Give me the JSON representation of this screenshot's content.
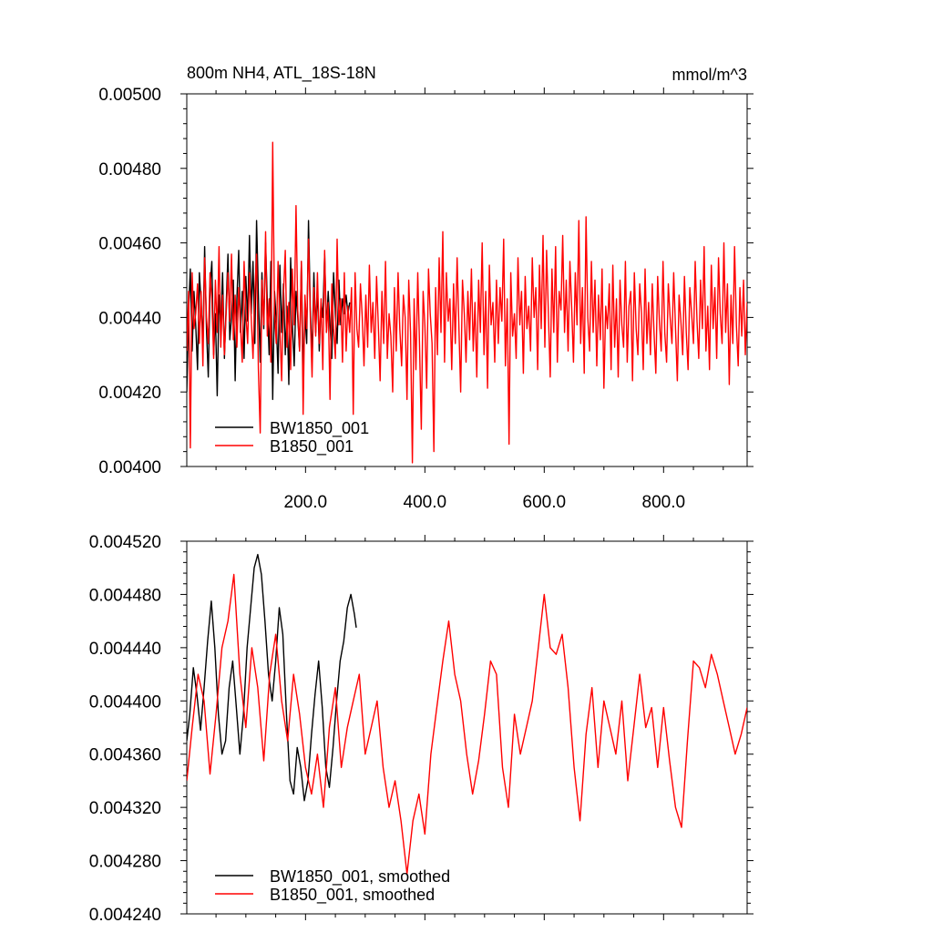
{
  "chart_data": [
    {
      "type": "line",
      "title": "800m NH4, ATL_18S-18N",
      "units": "mmol/m^3",
      "xlabel": "",
      "ylabel": "",
      "xlim": [
        1,
        940
      ],
      "ylim": [
        0.004,
        0.005
      ],
      "x_ticks": [
        200,
        400,
        600,
        800
      ],
      "x_tick_labels": [
        "200.0",
        "400.0",
        "600.0",
        "800.0"
      ],
      "y_ticks": [
        0.004,
        0.0042,
        0.0044,
        0.0046,
        0.0048,
        0.005
      ],
      "y_tick_labels": [
        "0.00400",
        "0.00420",
        "0.00440",
        "0.00460",
        "0.00480",
        "0.00500"
      ],
      "grid": false,
      "legend_position": "bottom-left",
      "series": [
        {
          "name": "BW1850_001",
          "color": "#000000",
          "x_start": 1,
          "x_step": 3,
          "values": [
            0.0042,
            0.00442,
            0.00453,
            0.00431,
            0.00447,
            0.00438,
            0.00426,
            0.00452,
            0.00444,
            0.00433,
            0.00459,
            0.00437,
            0.00424,
            0.00448,
            0.00455,
            0.0043,
            0.00441,
            0.00419,
            0.00446,
            0.00438,
            0.00452,
            0.00429,
            0.00443,
            0.00457,
            0.00434,
            0.0044,
            0.0045,
            0.00423,
            0.00445,
            0.00458,
            0.00436,
            0.00447,
            0.00429,
            0.00451,
            0.00439,
            0.00462,
            0.00441,
            0.00455,
            0.00433,
            0.00466,
            0.00446,
            0.00428,
            0.00452,
            0.00437,
            0.0046,
            0.00444,
            0.0043,
            0.00455,
            0.00418,
            0.00447,
            0.00439,
            0.00425,
            0.00454,
            0.00436,
            0.00449,
            0.0043,
            0.00443,
            0.00422,
            0.00456,
            0.00438,
            0.00427,
            0.00447,
            0.0044,
            0.00431,
            0.00455,
            0.00425,
            0.00441,
            0.00433,
            0.00466,
            0.00442,
            0.00429,
            0.00452,
            0.00436,
            0.00448,
            0.00431,
            0.00444,
            0.0044,
            0.00457,
            0.00436,
            0.00447,
            0.00438,
            0.00429,
            0.00452,
            0.00441,
            0.00433,
            0.0045,
            0.00438,
            0.00445,
            0.00441,
            0.00446,
            0.00441,
            0.00444
          ]
        },
        {
          "name": "B1850_001",
          "color": "#ff0000",
          "x_start": 1,
          "x_step": 3,
          "values": [
            0.00431,
            0.00447,
            0.00405,
            0.00452,
            0.00437,
            0.00441,
            0.00449,
            0.00433,
            0.00447,
            0.00427,
            0.00456,
            0.0044,
            0.00433,
            0.00452,
            0.00445,
            0.00429,
            0.0045,
            0.00436,
            0.00459,
            0.00432,
            0.00446,
            0.0043,
            0.00441,
            0.00452,
            0.00439,
            0.00457,
            0.00434,
            0.00446,
            0.00432,
            0.00448,
            0.00438,
            0.00428,
            0.00455,
            0.00441,
            0.00433,
            0.00452,
            0.0044,
            0.00429,
            0.00447,
            0.00457,
            0.00426,
            0.00409,
            0.0045,
            0.00438,
            0.00463,
            0.00435,
            0.00445,
            0.00428,
            0.00487,
            0.00441,
            0.00433,
            0.00455,
            0.00437,
            0.00423,
            0.00446,
            0.00458,
            0.00432,
            0.00444,
            0.00426,
            0.00453,
            0.00438,
            0.0047,
            0.00442,
            0.00431,
            0.00455,
            0.00414,
            0.00446,
            0.00437,
            0.00461,
            0.0044,
            0.00424,
            0.00448,
            0.00435,
            0.00452,
            0.00433,
            0.00445,
            0.00426,
            0.00458,
            0.00436,
            0.00444,
            0.00418,
            0.00449,
            0.00437,
            0.00429,
            0.00461,
            0.00438,
            0.00445,
            0.00428,
            0.00452,
            0.00431,
            0.00443,
            0.00436,
            0.00448,
            0.00414,
            0.00452,
            0.00437,
            0.00432,
            0.00449,
            0.0044,
            0.00427,
            0.00446,
            0.00432,
            0.00454,
            0.00436,
            0.00444,
            0.00429,
            0.00451,
            0.00438,
            0.00423,
            0.00447,
            0.00433,
            0.00455,
            0.00429,
            0.00441,
            0.00435,
            0.0042,
            0.00448,
            0.00431,
            0.00452,
            0.00437,
            0.00427,
            0.00446,
            0.0044,
            0.00418,
            0.0045,
            0.00436,
            0.00401,
            0.00445,
            0.00426,
            0.00452,
            0.00433,
            0.0041,
            0.00447,
            0.00438,
            0.00421,
            0.00453,
            0.00441,
            0.00433,
            0.00404,
            0.00448,
            0.0043,
            0.00456,
            0.00436,
            0.00463,
            0.00428,
            0.00452,
            0.00439,
            0.00445,
            0.00426,
            0.00449,
            0.00433,
            0.00456,
            0.00437,
            0.0042,
            0.0045,
            0.00441,
            0.00428,
            0.00447,
            0.00434,
            0.00453,
            0.00431,
            0.00444,
            0.00424,
            0.0045,
            0.00436,
            0.0046,
            0.0043,
            0.00447,
            0.00421,
            0.00454,
            0.00438,
            0.00444,
            0.00428,
            0.0045,
            0.00433,
            0.00448,
            0.00439,
            0.00461,
            0.00427,
            0.00445,
            0.00406,
            0.00452,
            0.00435,
            0.00441,
            0.00429,
            0.00456,
            0.00438,
            0.00447,
            0.00425,
            0.00451,
            0.00437,
            0.00443,
            0.00431,
            0.00456,
            0.0044,
            0.00448,
            0.00426,
            0.00454,
            0.00437,
            0.00462,
            0.00432,
            0.00458,
            0.00441,
            0.00424,
            0.00453,
            0.00436,
            0.00459,
            0.00428,
            0.00447,
            0.00442,
            0.00462,
            0.00436,
            0.0045,
            0.00431,
            0.00455,
            0.00443,
            0.00428,
            0.00452,
            0.00438,
            0.00466,
            0.00433,
            0.00448,
            0.00425,
            0.00467,
            0.0044,
            0.00431,
            0.00455,
            0.00436,
            0.0045,
            0.00427,
            0.00446,
            0.00434,
            0.00453,
            0.00421,
            0.00443,
            0.00437,
            0.00449,
            0.00426,
            0.00454,
            0.00432,
            0.00445,
            0.00424,
            0.0045,
            0.00438,
            0.00432,
            0.00455,
            0.00428,
            0.00443,
            0.00447,
            0.00423,
            0.00452,
            0.00437,
            0.0043,
            0.00449,
            0.00441,
            0.00426,
            0.00453,
            0.00433,
            0.00444,
            0.0043,
            0.00449,
            0.00436,
            0.00425,
            0.00451,
            0.00439,
            0.00431,
            0.00455,
            0.00436,
            0.00428,
            0.00449,
            0.0044,
            0.00433,
            0.00452,
            0.00437,
            0.00423,
            0.00446,
            0.00439,
            0.0043,
            0.00451,
            0.00436,
            0.00426,
            0.00448,
            0.00441,
            0.00433,
            0.00455,
            0.00439,
            0.00429,
            0.0045,
            0.00437,
            0.00459,
            0.00431,
            0.00443,
            0.00426,
            0.00454,
            0.00437,
            0.00448,
            0.00429,
            0.00456,
            0.00441,
            0.00433,
            0.0046,
            0.00436,
            0.00449,
            0.00422,
            0.00446,
            0.00433,
            0.00459,
            0.00438,
            0.00427,
            0.00448,
            0.00435,
            0.0045,
            0.0043,
            0.00444,
            0.00437,
            0.00422
          ]
        }
      ]
    },
    {
      "type": "line",
      "title": "",
      "xlabel": "",
      "ylabel": "",
      "xlim": [
        1,
        940
      ],
      "ylim": [
        0.00424,
        0.00452
      ],
      "x_ticks": [
        200,
        400,
        600,
        800
      ],
      "y_ticks": [
        0.00424,
        0.00428,
        0.00432,
        0.00436,
        0.0044,
        0.00444,
        0.00448,
        0.00452
      ],
      "y_tick_labels": [
        "0.004240",
        "0.004280",
        "0.004320",
        "0.004360",
        "0.004400",
        "0.004440",
        "0.004480",
        "0.004520"
      ],
      "grid": false,
      "legend_position": "bottom-left",
      "series": [
        {
          "name": "BW1850_001, smoothed",
          "color": "#000000",
          "x": [
            1,
            6,
            12,
            18,
            24,
            30,
            36,
            42,
            48,
            54,
            60,
            66,
            72,
            78,
            84,
            90,
            96,
            102,
            108,
            114,
            120,
            126,
            132,
            138,
            144,
            150,
            156,
            162,
            168,
            174,
            180,
            186,
            192,
            198,
            204,
            210,
            216,
            222,
            228,
            234,
            240,
            246,
            252,
            258,
            264,
            270,
            276,
            282,
            285
          ],
          "values": [
            0.00437,
            0.00439,
            0.004425,
            0.004405,
            0.004378,
            0.00441,
            0.004445,
            0.004475,
            0.00444,
            0.00439,
            0.00436,
            0.00437,
            0.00441,
            0.00443,
            0.004395,
            0.00436,
            0.00439,
            0.00444,
            0.00447,
            0.0045,
            0.00451,
            0.004495,
            0.00446,
            0.00442,
            0.0044,
            0.00443,
            0.00447,
            0.00445,
            0.00439,
            0.00434,
            0.00433,
            0.004365,
            0.00435,
            0.004325,
            0.00434,
            0.004375,
            0.004405,
            0.00443,
            0.004395,
            0.00435,
            0.004335,
            0.004365,
            0.0044,
            0.00443,
            0.004445,
            0.00447,
            0.00448,
            0.004465,
            0.004455
          ]
        },
        {
          "name": "B1850_001, smoothed",
          "color": "#ff0000",
          "x": [
            1,
            10,
            20,
            30,
            40,
            50,
            60,
            70,
            80,
            90,
            100,
            110,
            120,
            130,
            140,
            150,
            160,
            170,
            180,
            190,
            200,
            210,
            220,
            230,
            240,
            250,
            260,
            270,
            280,
            290,
            300,
            310,
            320,
            330,
            340,
            350,
            360,
            370,
            380,
            390,
            400,
            410,
            420,
            430,
            440,
            450,
            460,
            470,
            480,
            490,
            500,
            510,
            520,
            530,
            540,
            550,
            560,
            570,
            580,
            590,
            600,
            610,
            620,
            630,
            640,
            650,
            660,
            670,
            680,
            690,
            700,
            710,
            720,
            730,
            740,
            750,
            760,
            770,
            780,
            790,
            800,
            810,
            820,
            830,
            840,
            850,
            860,
            870,
            880,
            890,
            900,
            910,
            920,
            930,
            940
          ],
          "values": [
            0.00434,
            0.00438,
            0.00442,
            0.0044,
            0.004345,
            0.00439,
            0.00444,
            0.00446,
            0.004495,
            0.00442,
            0.00438,
            0.00444,
            0.00441,
            0.004355,
            0.00442,
            0.00445,
            0.0044,
            0.00437,
            0.00442,
            0.00439,
            0.00435,
            0.00433,
            0.00436,
            0.00432,
            0.00438,
            0.00441,
            0.00435,
            0.00438,
            0.0044,
            0.00442,
            0.00436,
            0.00438,
            0.0044,
            0.00435,
            0.00432,
            0.00434,
            0.00431,
            0.00427,
            0.00431,
            0.00433,
            0.0043,
            0.00436,
            0.004395,
            0.00443,
            0.00446,
            0.00442,
            0.0044,
            0.00436,
            0.00433,
            0.004355,
            0.00439,
            0.00443,
            0.00442,
            0.00435,
            0.00432,
            0.00439,
            0.00436,
            0.00438,
            0.0044,
            0.00444,
            0.00448,
            0.00444,
            0.004435,
            0.00445,
            0.00441,
            0.00435,
            0.00431,
            0.004375,
            0.00441,
            0.00435,
            0.0044,
            0.00438,
            0.00436,
            0.0044,
            0.00434,
            0.00438,
            0.00442,
            0.00438,
            0.004395,
            0.00435,
            0.004395,
            0.004355,
            0.00432,
            0.004305,
            0.00437,
            0.00443,
            0.004425,
            0.00441,
            0.004435,
            0.00442,
            0.0044,
            0.00438,
            0.00436,
            0.004375,
            0.004395
          ]
        }
      ]
    }
  ]
}
